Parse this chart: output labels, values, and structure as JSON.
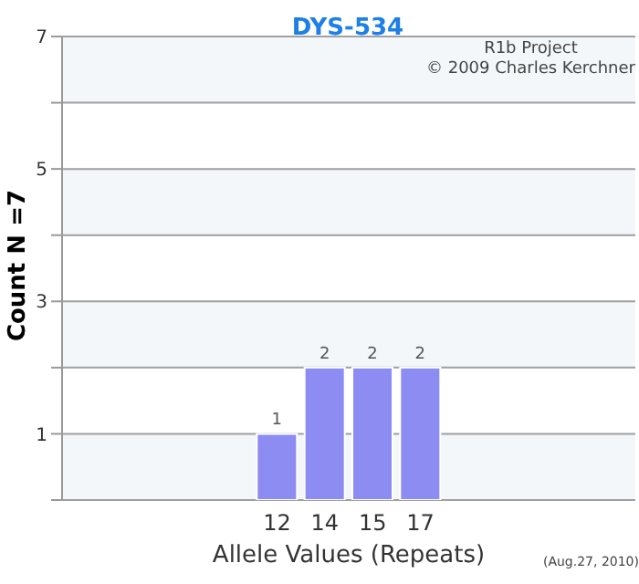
{
  "chart_data": {
    "type": "bar",
    "title": "DYS-534",
    "xlabel": "Allele Values (Repeats)",
    "ylabel": "Count N =7",
    "categories": [
      null,
      null,
      null,
      null,
      "12",
      "14",
      "15",
      "17",
      null,
      null,
      null,
      null
    ],
    "values": [
      null,
      null,
      null,
      null,
      1,
      2,
      2,
      2,
      null,
      null,
      null,
      null
    ],
    "color": "#8c8cf2",
    "data_labels": true,
    "ylim": [
      0,
      7
    ],
    "yticks": [
      {
        "value": 0,
        "label": null
      },
      1,
      {
        "value": 2,
        "label": null
      },
      3,
      {
        "value": 4,
        "label": null
      },
      5,
      {
        "value": 6,
        "label": null
      },
      7
    ],
    "grid": "y",
    "annotations": [
      "R1b Project",
      "© 2009 Charles Kerchner",
      "(Aug.27, 2010)"
    ]
  }
}
